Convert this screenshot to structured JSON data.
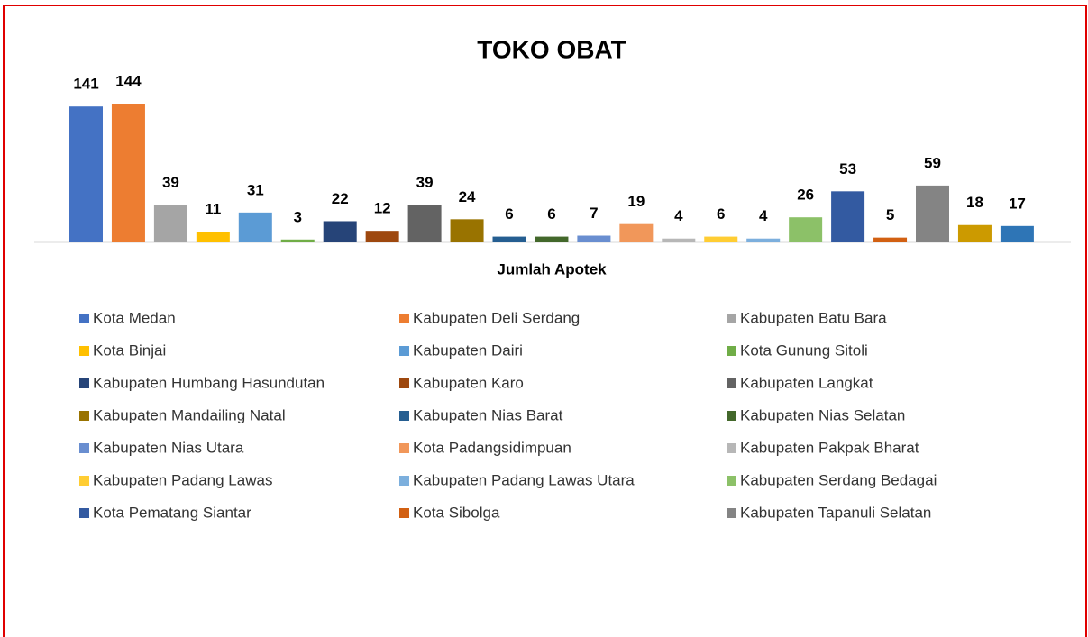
{
  "chart_data": {
    "type": "bar",
    "title": "TOKO OBAT",
    "categories": [
      "Jumlah Apotek"
    ],
    "series": [
      {
        "name": "Kota Medan",
        "color": "#4472c4",
        "values": [
          141
        ]
      },
      {
        "name": "Kabupaten Deli Serdang",
        "color": "#ed7d31",
        "values": [
          144
        ]
      },
      {
        "name": "Kabupaten Batu Bara",
        "color": "#a5a5a5",
        "values": [
          39
        ]
      },
      {
        "name": "Kota Binjai",
        "color": "#ffc000",
        "values": [
          11
        ]
      },
      {
        "name": "Kabupaten Dairi",
        "color": "#5b9bd5",
        "values": [
          31
        ]
      },
      {
        "name": "Kota Gunung Sitoli",
        "color": "#70ad47",
        "values": [
          3
        ]
      },
      {
        "name": "Kabupaten Humbang Hasundutan",
        "color": "#264478",
        "values": [
          22
        ]
      },
      {
        "name": "Kabupaten Karo",
        "color": "#9e480e",
        "values": [
          12
        ]
      },
      {
        "name": "Kabupaten Langkat",
        "color": "#636363",
        "values": [
          39
        ]
      },
      {
        "name": "Kabupaten Mandailing Natal",
        "color": "#997300",
        "values": [
          24
        ]
      },
      {
        "name": "Kabupaten Nias Barat",
        "color": "#255e91",
        "values": [
          6
        ]
      },
      {
        "name": "Kabupaten Nias Selatan",
        "color": "#43682b",
        "values": [
          6
        ]
      },
      {
        "name": "Kabupaten Nias Utara",
        "color": "#698ed0",
        "values": [
          7
        ]
      },
      {
        "name": "Kota Padangsidimpuan",
        "color": "#f1975a",
        "values": [
          19
        ]
      },
      {
        "name": "Kabupaten Pakpak Bharat",
        "color": "#b7b7b7",
        "values": [
          4
        ]
      },
      {
        "name": "Kabupaten Padang Lawas",
        "color": "#ffcd33",
        "values": [
          6
        ]
      },
      {
        "name": "Kabupaten Padang Lawas Utara",
        "color": "#7cafdd",
        "values": [
          4
        ]
      },
      {
        "name": "Kabupaten Serdang Bedagai",
        "color": "#8cc168",
        "values": [
          26
        ]
      },
      {
        "name": "Kota Pematang Siantar",
        "color": "#335aa1",
        "values": [
          53
        ]
      },
      {
        "name": "Kota Sibolga",
        "color": "#d26012",
        "values": [
          5
        ]
      },
      {
        "name": "Kabupaten Tapanuli Selatan",
        "color": "#848484",
        "values": [
          59
        ]
      },
      {
        "color": "#cc9a00",
        "values": [
          18
        ]
      },
      {
        "color": "#2e75b6",
        "values": [
          17
        ]
      }
    ],
    "legend": "bottom"
  }
}
